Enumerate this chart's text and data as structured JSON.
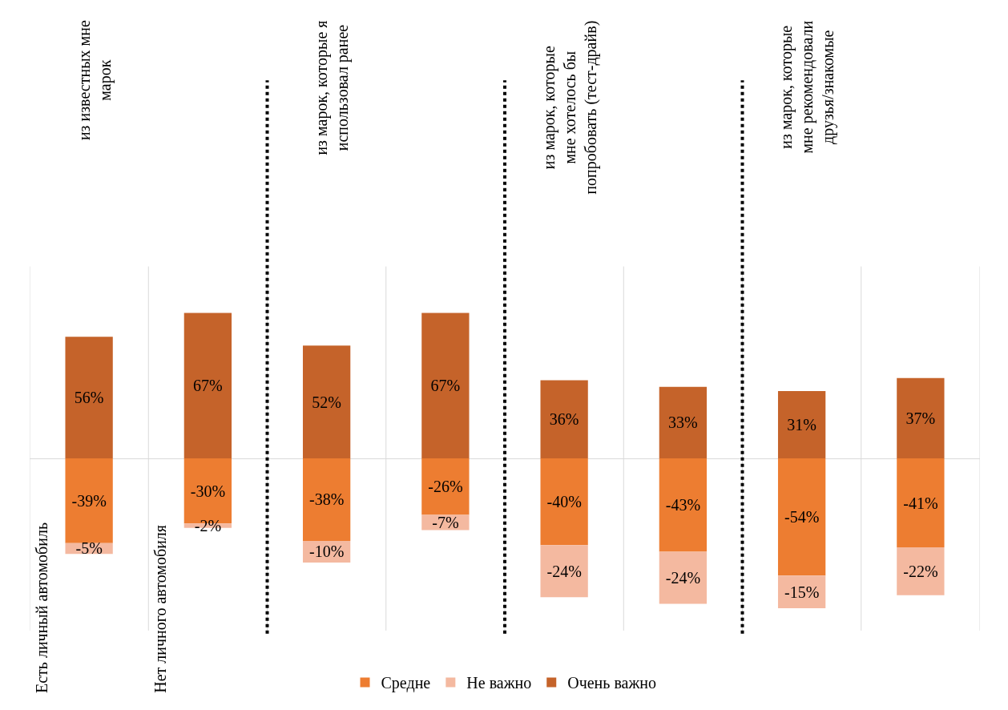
{
  "chart_data": {
    "type": "bar",
    "stacked": true,
    "categories": [
      "Есть личный автомобиль",
      "Нет личного автомобиля",
      null,
      null,
      null,
      null,
      null,
      null
    ],
    "series": [
      {
        "name": "Средне",
        "color": "#ed7d31",
        "values": [
          -39,
          -30,
          -38,
          -26,
          -40,
          -43,
          -54,
          -41
        ],
        "value_labels": [
          "-39%",
          "-30%",
          "-38%",
          "-26%",
          "-40%",
          "-43%",
          "-54%",
          "-41%"
        ]
      },
      {
        "name": "Не важно",
        "color": "#f4b9a0",
        "values": [
          -5,
          -2,
          -10,
          -7,
          -24,
          -24,
          -15,
          -22
        ],
        "value_labels": [
          "-5%",
          "-2%",
          "-10%",
          "-7%",
          "-24%",
          "-24%",
          "-15%",
          "-22%"
        ]
      },
      {
        "name": "Очень важно",
        "color": "#c5632a",
        "values": [
          56,
          67,
          52,
          67,
          36,
          33,
          31,
          37
        ],
        "value_labels": [
          "56%",
          "67%",
          "52%",
          "67%",
          "36%",
          "33%",
          "31%",
          "37%"
        ]
      }
    ],
    "annotations": [
      "из известных мне\nмарок",
      "из марок, которые я\nиспользовал ранее",
      "из марок, которые\nмне хотелось бы\nпопробовать (тест-драйв)",
      "из марок, которые\nмне рекомендовали\nдрузья/знакомые"
    ],
    "grid": "x",
    "legend": "bottom"
  }
}
